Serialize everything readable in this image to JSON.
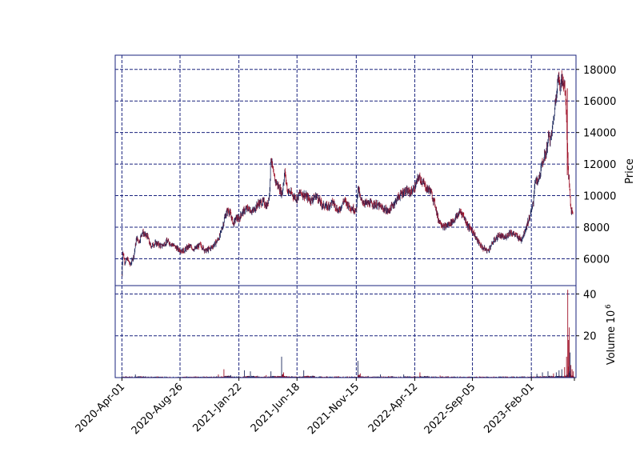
{
  "chart_data": [
    {
      "type": "candlestick",
      "panel": "price",
      "ylabel": "Price",
      "ylim": [
        4300,
        18900
      ],
      "yticks": [
        6000,
        8000,
        10000,
        12000,
        14000,
        16000,
        18000
      ],
      "up_color": "#1f2a5e",
      "down_color": "#a0142b",
      "grid": true,
      "grid_color": "#1a237e",
      "series": [
        [
          "2020-04-01",
          4950
        ],
        [
          "2020-04-03",
          6500
        ],
        [
          "2020-04-08",
          5800
        ],
        [
          "2020-04-15",
          6000
        ],
        [
          "2020-04-22",
          5600
        ],
        [
          "2020-05-01",
          6200
        ],
        [
          "2020-05-08",
          7300
        ],
        [
          "2020-05-15",
          7100
        ],
        [
          "2020-05-22",
          7700
        ],
        [
          "2020-05-29",
          7500
        ],
        [
          "2020-06-05",
          7400
        ],
        [
          "2020-06-12",
          6800
        ],
        [
          "2020-06-26",
          7000
        ],
        [
          "2020-07-10",
          6800
        ],
        [
          "2020-07-24",
          7100
        ],
        [
          "2020-08-07",
          6900
        ],
        [
          "2020-08-21",
          6600
        ],
        [
          "2020-09-04",
          6500
        ],
        [
          "2020-09-18",
          6800
        ],
        [
          "2020-10-02",
          6600
        ],
        [
          "2020-10-16",
          6900
        ],
        [
          "2020-10-30",
          6500
        ],
        [
          "2020-11-13",
          6700
        ],
        [
          "2020-11-27",
          7100
        ],
        [
          "2020-12-04",
          7400
        ],
        [
          "2020-12-11",
          8000
        ],
        [
          "2020-12-18",
          8700
        ],
        [
          "2020-12-25",
          9100
        ],
        [
          "2021-01-01",
          8800
        ],
        [
          "2021-01-08",
          8200
        ],
        [
          "2021-01-15",
          8600
        ],
        [
          "2021-01-22",
          8500
        ],
        [
          "2021-01-29",
          8900
        ],
        [
          "2021-02-12",
          9200
        ],
        [
          "2021-02-26",
          9000
        ],
        [
          "2021-03-12",
          9500
        ],
        [
          "2021-03-26",
          9600
        ],
        [
          "2021-04-02",
          9300
        ],
        [
          "2021-04-09",
          10000
        ],
        [
          "2021-04-13",
          12500
        ],
        [
          "2021-04-20",
          11200
        ],
        [
          "2021-04-27",
          10800
        ],
        [
          "2021-05-04",
          10500
        ],
        [
          "2021-05-11",
          10100
        ],
        [
          "2021-05-18",
          11500
        ],
        [
          "2021-05-25",
          10300
        ],
        [
          "2021-06-01",
          10200
        ],
        [
          "2021-06-08",
          10000
        ],
        [
          "2021-06-18",
          9800
        ],
        [
          "2021-06-25",
          10200
        ],
        [
          "2021-07-09",
          10000
        ],
        [
          "2021-07-23",
          9700
        ],
        [
          "2021-08-06",
          10000
        ],
        [
          "2021-08-20",
          9400
        ],
        [
          "2021-09-03",
          9300
        ],
        [
          "2021-09-17",
          9600
        ],
        [
          "2021-10-01",
          9000
        ],
        [
          "2021-10-15",
          9700
        ],
        [
          "2021-10-29",
          9300
        ],
        [
          "2021-11-12",
          9100
        ],
        [
          "2021-11-15",
          9000
        ],
        [
          "2021-11-19",
          10600
        ],
        [
          "2021-11-26",
          9700
        ],
        [
          "2021-12-10",
          9500
        ],
        [
          "2021-12-24",
          9500
        ],
        [
          "2022-01-07",
          9400
        ],
        [
          "2022-01-21",
          9200
        ],
        [
          "2022-02-04",
          9000
        ],
        [
          "2022-02-18",
          9500
        ],
        [
          "2022-03-04",
          10000
        ],
        [
          "2022-03-18",
          10300
        ],
        [
          "2022-04-01",
          10200
        ],
        [
          "2022-04-12",
          10500
        ],
        [
          "2022-04-22",
          11200
        ],
        [
          "2022-05-06",
          10700
        ],
        [
          "2022-05-13",
          10400
        ],
        [
          "2022-05-20",
          10400
        ],
        [
          "2022-05-27",
          9900
        ],
        [
          "2022-06-03",
          9400
        ],
        [
          "2022-06-10",
          8500
        ],
        [
          "2022-06-17",
          8300
        ],
        [
          "2022-06-24",
          8000
        ],
        [
          "2022-07-08",
          8200
        ],
        [
          "2022-07-22",
          8500
        ],
        [
          "2022-08-05",
          9000
        ],
        [
          "2022-08-12",
          8800
        ],
        [
          "2022-08-19",
          8400
        ],
        [
          "2022-08-26",
          8000
        ],
        [
          "2022-09-05",
          7800
        ],
        [
          "2022-09-16",
          7200
        ],
        [
          "2022-09-30",
          6700
        ],
        [
          "2022-10-14",
          6500
        ],
        [
          "2022-10-28",
          7100
        ],
        [
          "2022-11-11",
          7500
        ],
        [
          "2022-11-25",
          7300
        ],
        [
          "2022-12-09",
          7700
        ],
        [
          "2022-12-23",
          7500
        ],
        [
          "2023-01-06",
          7200
        ],
        [
          "2023-01-13",
          7600
        ],
        [
          "2023-01-20",
          8100
        ],
        [
          "2023-01-27",
          8600
        ],
        [
          "2023-02-01",
          9000
        ],
        [
          "2023-02-06",
          9600
        ],
        [
          "2023-02-10",
          11000
        ],
        [
          "2023-02-17",
          10800
        ],
        [
          "2023-02-24",
          11500
        ],
        [
          "2023-03-03",
          12300
        ],
        [
          "2023-03-10",
          12700
        ],
        [
          "2023-03-17",
          13800
        ],
        [
          "2023-03-22",
          13500
        ],
        [
          "2023-03-29",
          14800
        ],
        [
          "2023-04-03",
          16000
        ],
        [
          "2023-04-07",
          17000
        ],
        [
          "2023-04-11",
          17500
        ],
        [
          "2023-04-14",
          16800
        ],
        [
          "2023-04-18",
          17600
        ],
        [
          "2023-04-21",
          17000
        ],
        [
          "2023-04-25",
          17200
        ],
        [
          "2023-04-28",
          16500
        ],
        [
          "2023-05-02",
          14000
        ],
        [
          "2023-05-05",
          11600
        ],
        [
          "2023-05-09",
          10400
        ],
        [
          "2023-05-12",
          9200
        ],
        [
          "2023-05-16",
          8900
        ],
        [
          "2023-05-18",
          9100
        ]
      ]
    },
    {
      "type": "bar",
      "panel": "volume",
      "ylabel": "Volume",
      "scale_label": "10^6",
      "ylim": [
        0,
        44
      ],
      "yticks": [
        20,
        40
      ],
      "series": [
        [
          "2020-04-01",
          1.0
        ],
        [
          "2020-04-20",
          0.6
        ],
        [
          "2020-05-05",
          1.5
        ],
        [
          "2020-06-01",
          0.4
        ],
        [
          "2020-07-01",
          0.4
        ],
        [
          "2020-08-01",
          0.3
        ],
        [
          "2020-09-01",
          0.3
        ],
        [
          "2020-10-01",
          0.5
        ],
        [
          "2020-11-01",
          0.6
        ],
        [
          "2020-12-01",
          1.5
        ],
        [
          "2020-12-15",
          4.0
        ],
        [
          "2021-01-01",
          1.2
        ],
        [
          "2021-01-22",
          0.8
        ],
        [
          "2021-02-05",
          3.5
        ],
        [
          "2021-02-20",
          3.0
        ],
        [
          "2021-03-10",
          0.9
        ],
        [
          "2021-04-01",
          1.2
        ],
        [
          "2021-04-13",
          3.0
        ],
        [
          "2021-05-10",
          10.0
        ],
        [
          "2021-05-15",
          2.5
        ],
        [
          "2021-06-05",
          0.7
        ],
        [
          "2021-07-05",
          3.5
        ],
        [
          "2021-08-01",
          0.8
        ],
        [
          "2021-09-01",
          0.6
        ],
        [
          "2021-10-01",
          0.7
        ],
        [
          "2021-11-19",
          8.0
        ],
        [
          "2021-11-25",
          2.0
        ],
        [
          "2021-12-15",
          0.8
        ],
        [
          "2022-01-15",
          1.5
        ],
        [
          "2022-02-15",
          0.5
        ],
        [
          "2022-03-15",
          1.5
        ],
        [
          "2022-04-12",
          0.7
        ],
        [
          "2022-04-25",
          2.5
        ],
        [
          "2022-05-15",
          0.8
        ],
        [
          "2022-06-15",
          1.0
        ],
        [
          "2022-07-15",
          0.5
        ],
        [
          "2022-08-15",
          0.4
        ],
        [
          "2022-09-15",
          0.5
        ],
        [
          "2022-10-15",
          0.4
        ],
        [
          "2022-11-15",
          0.4
        ],
        [
          "2022-12-15",
          0.5
        ],
        [
          "2023-01-15",
          0.6
        ],
        [
          "2023-02-01",
          1.5
        ],
        [
          "2023-02-15",
          1.8
        ],
        [
          "2023-03-01",
          2.5
        ],
        [
          "2023-03-15",
          3.0
        ],
        [
          "2023-03-29",
          2.0
        ],
        [
          "2023-04-05",
          2.5
        ],
        [
          "2023-04-12",
          3.5
        ],
        [
          "2023-04-19",
          4.0
        ],
        [
          "2023-04-26",
          5.0
        ],
        [
          "2023-05-01",
          10.0
        ],
        [
          "2023-05-04",
          42.0
        ],
        [
          "2023-05-06",
          18.0
        ],
        [
          "2023-05-08",
          24.0
        ],
        [
          "2023-05-10",
          12.0
        ],
        [
          "2023-05-12",
          6.0
        ],
        [
          "2023-05-15",
          4.0
        ],
        [
          "2023-05-18",
          3.0
        ]
      ]
    }
  ],
  "x_axis": {
    "range": [
      "2020-03-15",
      "2023-05-25"
    ],
    "ticks": [
      "2020-Apr-01",
      "2020-Aug-26",
      "2021-Jan-22",
      "2021-Jun-18",
      "2021-Nov-15",
      "2022-Apr-12",
      "2022-Sep-05",
      "2023-Feb-01"
    ],
    "tick_dates": [
      "2020-04-01",
      "2020-08-26",
      "2021-01-22",
      "2021-06-18",
      "2021-11-15",
      "2022-04-12",
      "2022-09-05",
      "2023-02-01"
    ]
  }
}
